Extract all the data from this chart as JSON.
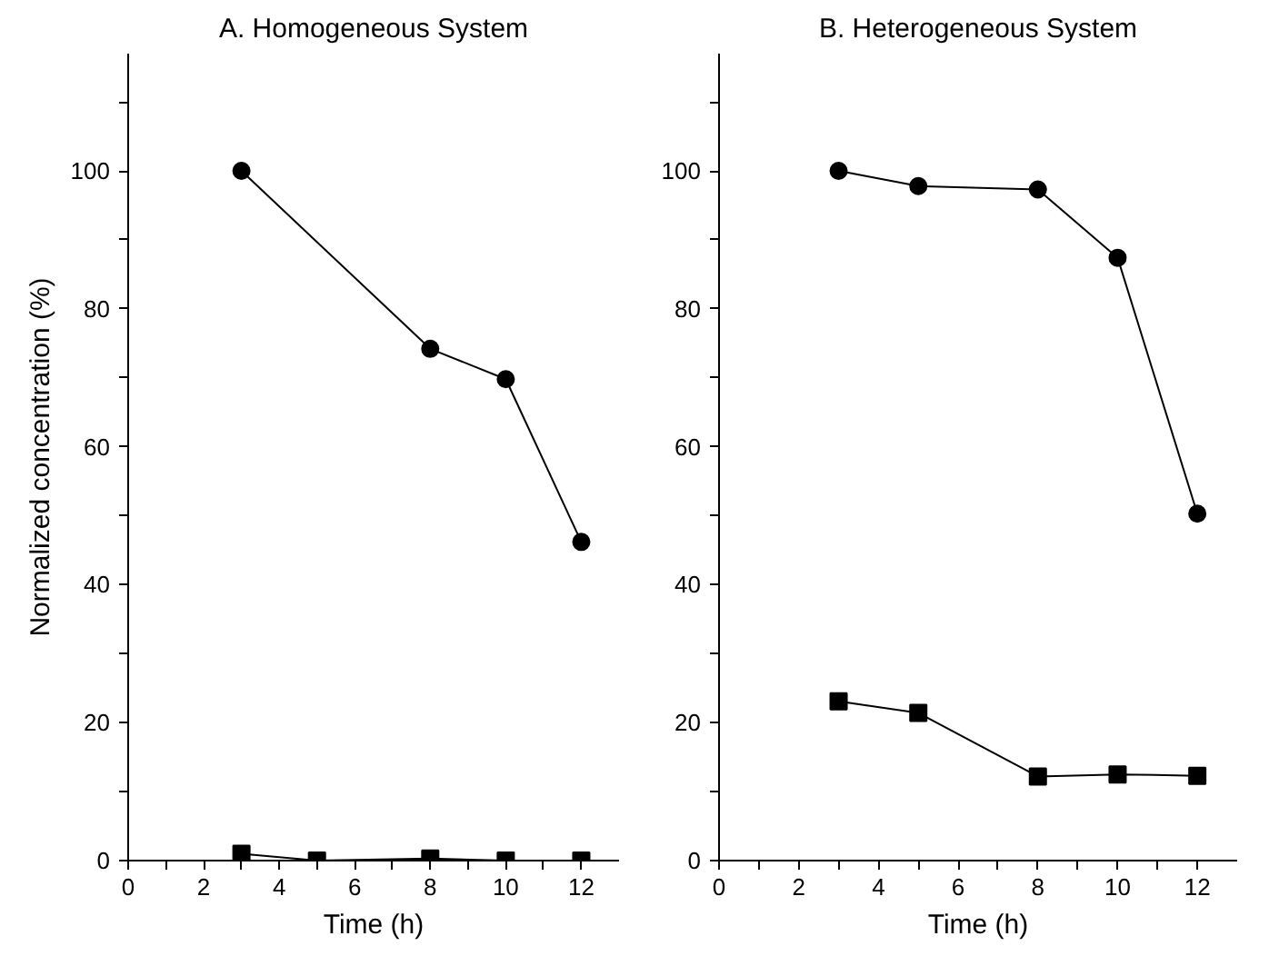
{
  "chart_data": [
    {
      "type": "line",
      "title": "A. Homogeneous System",
      "xlabel": "Time (h)",
      "ylabel": "Normalized concentration (%)",
      "xlim": [
        0,
        13
      ],
      "ylim": [
        0,
        117
      ],
      "xticks": [
        0,
        {
          "value": 1,
          "label": null
        },
        2,
        {
          "value": 3,
          "label": null
        },
        4,
        {
          "value": 5,
          "label": null
        },
        6,
        {
          "value": 7,
          "label": null
        },
        8,
        {
          "value": 9,
          "label": null
        },
        10,
        {
          "value": 11,
          "label": null
        },
        12
      ],
      "yticks": [
        0,
        {
          "value": 10,
          "label": null
        },
        20,
        {
          "value": 30,
          "label": null
        },
        40,
        {
          "value": 50,
          "label": null
        },
        60,
        {
          "value": 70,
          "label": null
        },
        80,
        {
          "value": 90,
          "label": null
        },
        100,
        {
          "value": 110,
          "label": null
        }
      ],
      "grid": false,
      "line_style": "solid",
      "series": [
        {
          "color": "#000000",
          "marker": "circle",
          "x": [
            3,
            8,
            10,
            12
          ],
          "values": [
            100,
            74.2,
            69.8,
            46.2
          ]
        },
        {
          "color": "#000000",
          "marker": "square",
          "x": [
            3,
            5,
            8,
            10,
            12
          ],
          "values": [
            1,
            0,
            0.3,
            0,
            0
          ]
        }
      ]
    },
    {
      "type": "line",
      "title": "B. Heterogeneous System",
      "xlabel": "Time (h)",
      "xlim": [
        0,
        13
      ],
      "ylim": [
        0,
        117
      ],
      "xticks": [
        0,
        {
          "value": 1,
          "label": null
        },
        2,
        {
          "value": 3,
          "label": null
        },
        4,
        {
          "value": 5,
          "label": null
        },
        6,
        {
          "value": 7,
          "label": null
        },
        8,
        {
          "value": 9,
          "label": null
        },
        10,
        {
          "value": 11,
          "label": null
        },
        12
      ],
      "yticks": [
        0,
        {
          "value": 10,
          "label": null
        },
        20,
        {
          "value": 30,
          "label": null
        },
        40,
        {
          "value": 50,
          "label": null
        },
        60,
        {
          "value": 70,
          "label": null
        },
        80,
        {
          "value": 90,
          "label": null
        },
        100,
        {
          "value": 110,
          "label": null
        }
      ],
      "grid": false,
      "line_style": "solid",
      "series": [
        {
          "color": "#000000",
          "marker": "circle",
          "x": [
            3,
            5,
            8,
            10,
            12
          ],
          "values": [
            100,
            97.8,
            97.3,
            87.4,
            50.3
          ]
        },
        {
          "color": "#000000",
          "marker": "square",
          "x": [
            3,
            5,
            8,
            10,
            12
          ],
          "values": [
            23.1,
            21.4,
            12.2,
            12.5,
            12.3
          ]
        }
      ]
    }
  ]
}
